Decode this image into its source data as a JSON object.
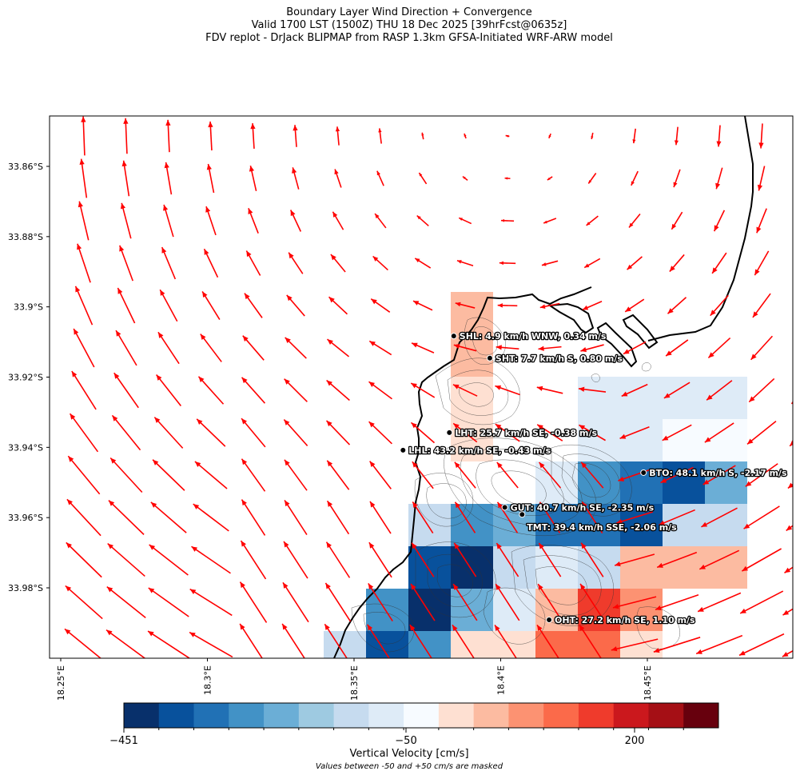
{
  "title": {
    "line1": "Boundary Layer Wind Direction + Convergence",
    "line2": "Valid 1700 LST (1500Z) THU 18 Dec 2025 [39hrFcst@0635z]",
    "line3": "FDV replot - DrJack BLIPMAP from RASP 1.3km GFSA-Initiated WRF-ARW model"
  },
  "map": {
    "lon_range": [
      18.25,
      18.5
    ],
    "lat_range": [
      -34.0,
      -33.846
    ],
    "lat_ticks": [
      "33.86°S",
      "33.88°S",
      "33.9°S",
      "33.92°S",
      "33.94°S",
      "33.96°S",
      "33.98°S"
    ],
    "lat_values": [
      -33.86,
      -33.88,
      -33.9,
      -33.92,
      -33.94,
      -33.96,
      -33.98
    ],
    "lon_ticks": [
      "18.25°E",
      "18.3°E",
      "18.35°E",
      "18.4°E",
      "18.45°E"
    ],
    "lon_values": [
      18.25,
      18.3,
      18.35,
      18.4,
      18.45
    ],
    "arrow_color": "#ff0000",
    "coast_color": "#000000"
  },
  "stations": [
    {
      "code": "SHL",
      "label": "SHL: 4.9 km/h WNW, 0.34 m/s",
      "lon": 18.384,
      "lat": -33.9083
    },
    {
      "code": "SHT",
      "label": "SHT: 7.7 km/h S, 0.80 m/s",
      "lon": 18.3963,
      "lat": -33.9146
    },
    {
      "code": "LHT",
      "label": "LHT: 25.7 km/h SE, -0.38 m/s",
      "lon": 18.3825,
      "lat": -33.9358
    },
    {
      "code": "LHL",
      "label": "LHL: 43.2 km/h SE, -0.43 m/s",
      "lon": 18.3667,
      "lat": -33.9408
    },
    {
      "code": "BTO",
      "label": "BTO: 48.1 km/h S, -2.17 m/s",
      "lon": 18.4487,
      "lat": -33.9472
    },
    {
      "code": "GUT",
      "label": "GUT: 40.7 km/h SE, -2.35 m/s",
      "lon": 18.4014,
      "lat": -33.9571
    },
    {
      "code": "TMT",
      "label": "TMT: 39.4 km/h SSE, -2.06 m/s",
      "lon": 18.4073,
      "lat": -33.9591
    },
    {
      "code": "OHT",
      "label": "OHT: 27.2 km/h SE, 1.10 m/s",
      "lon": 18.4165,
      "lat": -33.9891
    }
  ],
  "colorbar": {
    "label": "Vertical Velocity [cm/s]",
    "note": "Values between -50 and +50 cm/s are masked",
    "ticks": [
      {
        "text": "−451",
        "value": -451
      },
      {
        "text": "−50",
        "value": -50
      },
      {
        "text": "200",
        "value": 200
      }
    ],
    "colors": [
      "#08306b",
      "#08519c",
      "#2171b5",
      "#4292c6",
      "#6baed6",
      "#9ecae1",
      "#c6dbef",
      "#deebf7",
      "#f7fbff",
      "#fee0d2",
      "#fcbba1",
      "#fc9272",
      "#fb6a4a",
      "#ef3b2c",
      "#cb181d",
      "#a50f15",
      "#67000d"
    ]
  }
}
